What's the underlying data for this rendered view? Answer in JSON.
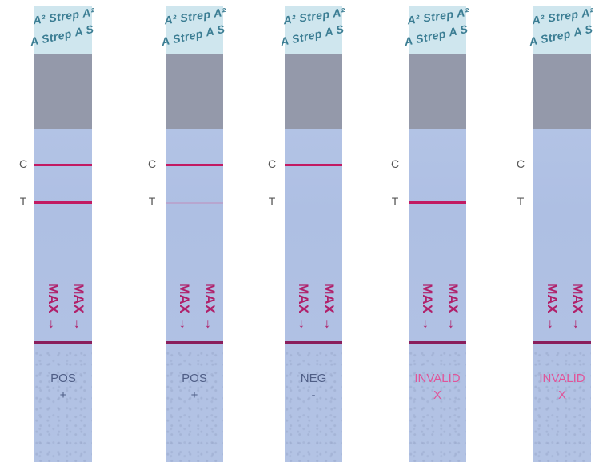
{
  "colors": {
    "strip": "#b3c3e4",
    "line": "#c21a62",
    "pos_text": "#4f5e86",
    "invalid_text": "#e0559a"
  },
  "strips": [
    {
      "c_label": "C",
      "t_label": "T",
      "logo_upper": "A² Strep A²",
      "logo_lower": "A Strep A S",
      "max_label": "MAX →",
      "result": "POS",
      "symbol": "+",
      "control_line": true,
      "test_line": "strong"
    },
    {
      "c_label": "C",
      "t_label": "T",
      "logo_upper": "A² Strep A²",
      "logo_lower": "A Strep A S",
      "max_label": "MAX →",
      "result": "POS",
      "symbol": "+",
      "control_line": true,
      "test_line": "faint"
    },
    {
      "c_label": "C",
      "t_label": "T",
      "logo_upper": "A² Strep A²",
      "logo_lower": "A Strep A S",
      "max_label": "MAX →",
      "result": "NEG",
      "symbol": "-",
      "control_line": true,
      "test_line": "none"
    },
    {
      "c_label": "C",
      "t_label": "T",
      "logo_upper": "A² Strep A²",
      "logo_lower": "A Strep A S",
      "max_label": "MAX →",
      "result": "INVALID",
      "symbol": "X",
      "control_line": false,
      "test_line": "strong"
    },
    {
      "c_label": "C",
      "t_label": "T",
      "logo_upper": "A² Strep A²",
      "logo_lower": "A Strep A S",
      "max_label": "MAX →",
      "result": "INVALID",
      "symbol": "X",
      "control_line": false,
      "test_line": "none"
    }
  ]
}
